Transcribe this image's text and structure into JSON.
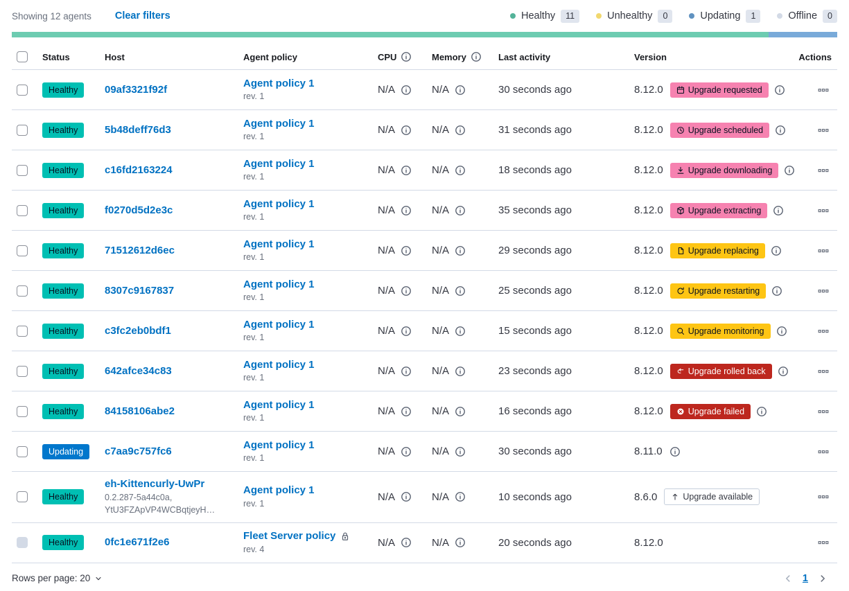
{
  "toolbar": {
    "showing": "Showing 12 agents",
    "clear_filters": "Clear filters",
    "legend": [
      {
        "label": "Healthy",
        "count": "11",
        "color": "#54B399"
      },
      {
        "label": "Unhealthy",
        "count": "0",
        "color": "#F1D86F"
      },
      {
        "label": "Updating",
        "count": "1",
        "color": "#6092C0"
      },
      {
        "label": "Offline",
        "count": "0",
        "color": "#D3DAE6"
      }
    ]
  },
  "health_bar": {
    "segments": [
      {
        "status": "healthy",
        "fraction": 0.9167,
        "color": "#6DCCB1"
      },
      {
        "status": "updating",
        "fraction": 0.0833,
        "color": "#79AAD9"
      }
    ]
  },
  "status_colors": {
    "healthy": {
      "bg": "#00BFB3",
      "text": "#07101F"
    },
    "updating": {
      "bg": "#0077CC",
      "text": "#FFFFFF"
    }
  },
  "badge_colors": {
    "pink": {
      "bg": "#F682B0",
      "text": "#07101F"
    },
    "warning": {
      "bg": "#FEC514",
      "text": "#07101F"
    },
    "danger": {
      "bg": "#BD271E",
      "text": "#FFFFFF"
    },
    "hollow": {
      "bg": "#FFFFFF",
      "text": "#343741"
    }
  },
  "table": {
    "columns": [
      {
        "label": "Status"
      },
      {
        "label": "Host"
      },
      {
        "label": "Agent policy"
      },
      {
        "label": "CPU",
        "info": true
      },
      {
        "label": "Memory",
        "info": true
      },
      {
        "label": "Last activity"
      },
      {
        "label": "Version"
      },
      {
        "label": "Actions",
        "align": "right"
      }
    ],
    "rows": [
      {
        "status": "Healthy",
        "status_key": "healthy",
        "host": "09af3321f92f",
        "host_sub": [],
        "policy": "Agent policy 1",
        "policy_rev": "rev. 1",
        "policy_locked": false,
        "cpu": "N/A",
        "memory": "N/A",
        "last_activity": "30 seconds ago",
        "version": "8.12.0",
        "upgrade": {
          "label": "Upgrade requested",
          "type": "pink",
          "icon": "calendar"
        },
        "version_info": true,
        "checkbox_disabled": false
      },
      {
        "status": "Healthy",
        "status_key": "healthy",
        "host": "5b48deff76d3",
        "host_sub": [],
        "policy": "Agent policy 1",
        "policy_rev": "rev. 1",
        "policy_locked": false,
        "cpu": "N/A",
        "memory": "N/A",
        "last_activity": "31 seconds ago",
        "version": "8.12.0",
        "upgrade": {
          "label": "Upgrade scheduled",
          "type": "pink",
          "icon": "clock"
        },
        "version_info": true,
        "checkbox_disabled": false
      },
      {
        "status": "Healthy",
        "status_key": "healthy",
        "host": "c16fd2163224",
        "host_sub": [],
        "policy": "Agent policy 1",
        "policy_rev": "rev. 1",
        "policy_locked": false,
        "cpu": "N/A",
        "memory": "N/A",
        "last_activity": "18 seconds ago",
        "version": "8.12.0",
        "upgrade": {
          "label": "Upgrade downloading",
          "type": "pink",
          "icon": "download"
        },
        "version_info": true,
        "checkbox_disabled": false
      },
      {
        "status": "Healthy",
        "status_key": "healthy",
        "host": "f0270d5d2e3c",
        "host_sub": [],
        "policy": "Agent policy 1",
        "policy_rev": "rev. 1",
        "policy_locked": false,
        "cpu": "N/A",
        "memory": "N/A",
        "last_activity": "35 seconds ago",
        "version": "8.12.0",
        "upgrade": {
          "label": "Upgrade extracting",
          "type": "pink",
          "icon": "package"
        },
        "version_info": true,
        "checkbox_disabled": false
      },
      {
        "status": "Healthy",
        "status_key": "healthy",
        "host": "71512612d6ec",
        "host_sub": [],
        "policy": "Agent policy 1",
        "policy_rev": "rev. 1",
        "policy_locked": false,
        "cpu": "N/A",
        "memory": "N/A",
        "last_activity": "29 seconds ago",
        "version": "8.12.0",
        "upgrade": {
          "label": "Upgrade replacing",
          "type": "warning",
          "icon": "copy"
        },
        "version_info": true,
        "checkbox_disabled": false
      },
      {
        "status": "Healthy",
        "status_key": "healthy",
        "host": "8307c9167837",
        "host_sub": [],
        "policy": "Agent policy 1",
        "policy_rev": "rev. 1",
        "policy_locked": false,
        "cpu": "N/A",
        "memory": "N/A",
        "last_activity": "25 seconds ago",
        "version": "8.12.0",
        "upgrade": {
          "label": "Upgrade restarting",
          "type": "warning",
          "icon": "refresh"
        },
        "version_info": true,
        "checkbox_disabled": false
      },
      {
        "status": "Healthy",
        "status_key": "healthy",
        "host": "c3fc2eb0bdf1",
        "host_sub": [],
        "policy": "Agent policy 1",
        "policy_rev": "rev. 1",
        "policy_locked": false,
        "cpu": "N/A",
        "memory": "N/A",
        "last_activity": "15 seconds ago",
        "version": "8.12.0",
        "upgrade": {
          "label": "Upgrade monitoring",
          "type": "warning",
          "icon": "inspect"
        },
        "version_info": true,
        "checkbox_disabled": false
      },
      {
        "status": "Healthy",
        "status_key": "healthy",
        "host": "642afce34c83",
        "host_sub": [],
        "policy": "Agent policy 1",
        "policy_rev": "rev. 1",
        "policy_locked": false,
        "cpu": "N/A",
        "memory": "N/A",
        "last_activity": "23 seconds ago",
        "version": "8.12.0",
        "upgrade": {
          "label": "Upgrade rolled back",
          "type": "danger",
          "icon": "return"
        },
        "version_info": true,
        "checkbox_disabled": false
      },
      {
        "status": "Healthy",
        "status_key": "healthy",
        "host": "84158106abe2",
        "host_sub": [],
        "policy": "Agent policy 1",
        "policy_rev": "rev. 1",
        "policy_locked": false,
        "cpu": "N/A",
        "memory": "N/A",
        "last_activity": "16 seconds ago",
        "version": "8.12.0",
        "upgrade": {
          "label": "Upgrade failed",
          "type": "danger",
          "icon": "error"
        },
        "version_info": true,
        "checkbox_disabled": false
      },
      {
        "status": "Updating",
        "status_key": "updating",
        "host": "c7aa9c757fc6",
        "host_sub": [],
        "policy": "Agent policy 1",
        "policy_rev": "rev. 1",
        "policy_locked": false,
        "cpu": "N/A",
        "memory": "N/A",
        "last_activity": "30 seconds ago",
        "version": "8.11.0",
        "upgrade": null,
        "version_info": true,
        "checkbox_disabled": false
      },
      {
        "status": "Healthy",
        "status_key": "healthy",
        "host": "eh-Kittencurly-UwPr",
        "host_sub": [
          "0.2.287-5a44c0a,",
          "YtU3FZApVP4WCBqtjeyH…"
        ],
        "policy": "Agent policy 1",
        "policy_rev": "rev. 1",
        "policy_locked": false,
        "cpu": "N/A",
        "memory": "N/A",
        "last_activity": "10 seconds ago",
        "version": "8.6.0",
        "upgrade": {
          "label": "Upgrade available",
          "type": "hollow",
          "icon": "sortUp"
        },
        "version_info": false,
        "checkbox_disabled": false
      },
      {
        "status": "Healthy",
        "status_key": "healthy",
        "host": "0fc1e671f2e6",
        "host_sub": [],
        "policy": "Fleet Server policy",
        "policy_rev": "rev. 4",
        "policy_locked": true,
        "cpu": "N/A",
        "memory": "N/A",
        "last_activity": "20 seconds ago",
        "version": "8.12.0",
        "upgrade": null,
        "version_info": false,
        "checkbox_disabled": true
      }
    ]
  },
  "footer": {
    "rows_per_page": "Rows per page: 20",
    "page": "1"
  }
}
